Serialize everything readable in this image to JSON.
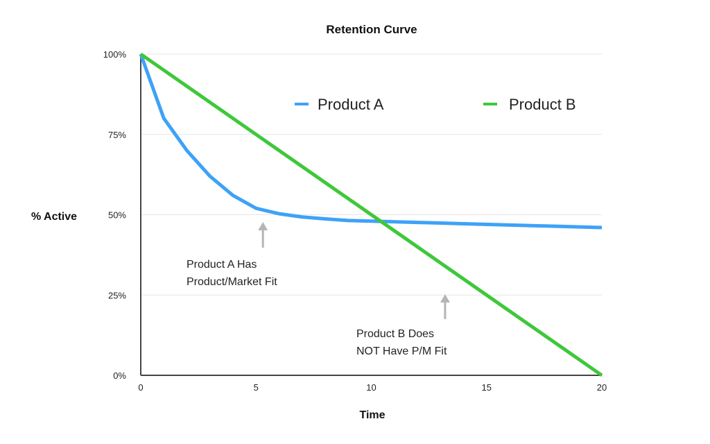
{
  "chart_data": {
    "type": "line",
    "title": "Retention Curve",
    "xlabel": "Time",
    "ylabel": "% Active",
    "xlim": [
      0,
      20
    ],
    "ylim": [
      0,
      100
    ],
    "x_ticks": [
      "0",
      "5",
      "10",
      "15",
      "20"
    ],
    "y_ticks": [
      "0%",
      "25%",
      "50%",
      "75%",
      "100%"
    ],
    "grid": "horizontal",
    "legend_position": "top-right",
    "series": [
      {
        "name": "Product A",
        "color": "#3ea2f7",
        "x": [
          0,
          1,
          2,
          3,
          4,
          5,
          6,
          7,
          8,
          9,
          10,
          12,
          14,
          16,
          18,
          20
        ],
        "y": [
          100,
          80,
          70,
          62,
          56,
          52,
          50.3,
          49.3,
          48.7,
          48.2,
          48,
          47.6,
          47.2,
          46.8,
          46.4,
          46
        ]
      },
      {
        "name": "Product B",
        "color": "#3ec83a",
        "x": [
          0,
          20
        ],
        "y": [
          100,
          0
        ]
      }
    ],
    "annotations": [
      {
        "lines": [
          "Product A Has",
          "Product/Market Fit"
        ],
        "arrow_at_x": 5.3
      },
      {
        "lines": [
          "Product B Does",
          "NOT Have P/M Fit"
        ],
        "arrow_at_x": 13.2
      }
    ]
  }
}
